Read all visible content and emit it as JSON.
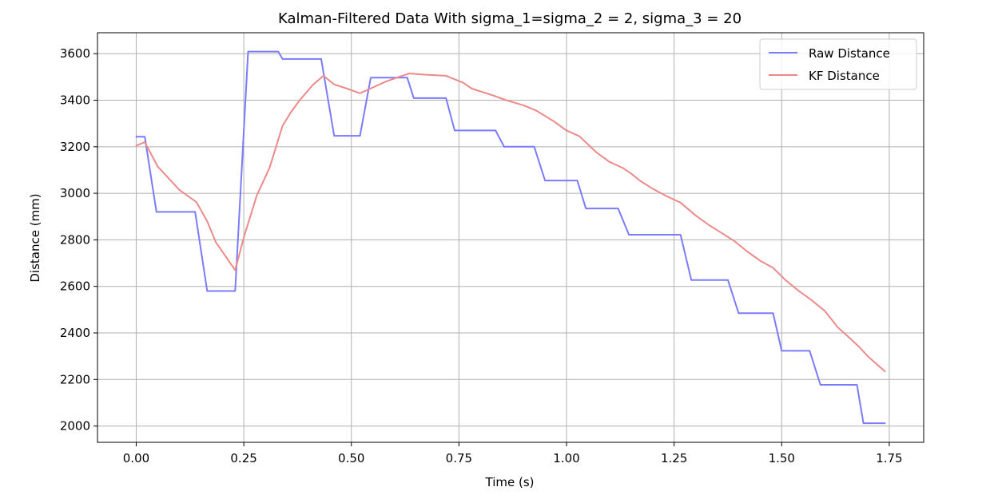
{
  "chart_data": {
    "type": "line",
    "title": "Kalman-Filtered Data With sigma_1=sigma_2 = 2, sigma_3 = 20",
    "xlabel": "Time (s)",
    "ylabel": "Distance (mm)",
    "xlim": [
      -0.09,
      1.83
    ],
    "ylim": [
      1930,
      3690
    ],
    "xticks": [
      0.0,
      0.25,
      0.5,
      0.75,
      1.0,
      1.25,
      1.5,
      1.75
    ],
    "xtick_labels": [
      "0.00",
      "0.25",
      "0.50",
      "0.75",
      "1.00",
      "1.25",
      "1.50",
      "1.75"
    ],
    "yticks": [
      2000,
      2200,
      2400,
      2600,
      2800,
      3000,
      3200,
      3400,
      3600
    ],
    "ytick_labels": [
      "2000",
      "2200",
      "2400",
      "2600",
      "2800",
      "3000",
      "3200",
      "3400",
      "3600"
    ],
    "grid": true,
    "legend_position": "top-right",
    "series": [
      {
        "name": "Raw Distance",
        "color": "#7b7bff",
        "points": [
          [
            0.0,
            3243
          ],
          [
            0.02,
            3243
          ],
          [
            0.047,
            2920
          ],
          [
            0.137,
            2920
          ],
          [
            0.165,
            2580
          ],
          [
            0.23,
            2580
          ],
          [
            0.26,
            3609
          ],
          [
            0.33,
            3609
          ],
          [
            0.34,
            3577
          ],
          [
            0.43,
            3577
          ],
          [
            0.46,
            3247
          ],
          [
            0.52,
            3247
          ],
          [
            0.545,
            3497
          ],
          [
            0.63,
            3497
          ],
          [
            0.645,
            3409
          ],
          [
            0.72,
            3409
          ],
          [
            0.74,
            3270
          ],
          [
            0.835,
            3270
          ],
          [
            0.855,
            3200
          ],
          [
            0.925,
            3200
          ],
          [
            0.95,
            3055
          ],
          [
            1.025,
            3055
          ],
          [
            1.045,
            2935
          ],
          [
            1.12,
            2935
          ],
          [
            1.145,
            2822
          ],
          [
            1.265,
            2822
          ],
          [
            1.29,
            2627
          ],
          [
            1.375,
            2627
          ],
          [
            1.4,
            2485
          ],
          [
            1.48,
            2485
          ],
          [
            1.5,
            2323
          ],
          [
            1.565,
            2323
          ],
          [
            1.59,
            2177
          ],
          [
            1.675,
            2177
          ],
          [
            1.69,
            2012
          ],
          [
            1.74,
            2012
          ]
        ]
      },
      {
        "name": "KF Distance",
        "color": "#ec8a8a",
        "points": [
          [
            0.0,
            3205
          ],
          [
            0.02,
            3220
          ],
          [
            0.05,
            3115
          ],
          [
            0.08,
            3055
          ],
          [
            0.1,
            3015
          ],
          [
            0.14,
            2962
          ],
          [
            0.165,
            2880
          ],
          [
            0.185,
            2790
          ],
          [
            0.23,
            2670
          ],
          [
            0.25,
            2810
          ],
          [
            0.28,
            2990
          ],
          [
            0.31,
            3110
          ],
          [
            0.34,
            3290
          ],
          [
            0.36,
            3350
          ],
          [
            0.38,
            3400
          ],
          [
            0.41,
            3465
          ],
          [
            0.435,
            3505
          ],
          [
            0.46,
            3468
          ],
          [
            0.49,
            3450
          ],
          [
            0.52,
            3430
          ],
          [
            0.55,
            3455
          ],
          [
            0.58,
            3480
          ],
          [
            0.61,
            3500
          ],
          [
            0.635,
            3515
          ],
          [
            0.67,
            3510
          ],
          [
            0.72,
            3505
          ],
          [
            0.76,
            3475
          ],
          [
            0.78,
            3450
          ],
          [
            0.83,
            3420
          ],
          [
            0.86,
            3400
          ],
          [
            0.9,
            3378
          ],
          [
            0.93,
            3355
          ],
          [
            0.97,
            3310
          ],
          [
            1.0,
            3270
          ],
          [
            1.03,
            3245
          ],
          [
            1.05,
            3210
          ],
          [
            1.07,
            3175
          ],
          [
            1.1,
            3135
          ],
          [
            1.13,
            3110
          ],
          [
            1.15,
            3085
          ],
          [
            1.17,
            3055
          ],
          [
            1.2,
            3020
          ],
          [
            1.23,
            2990
          ],
          [
            1.265,
            2960
          ],
          [
            1.3,
            2905
          ],
          [
            1.33,
            2865
          ],
          [
            1.36,
            2830
          ],
          [
            1.39,
            2795
          ],
          [
            1.42,
            2750
          ],
          [
            1.45,
            2710
          ],
          [
            1.48,
            2680
          ],
          [
            1.51,
            2625
          ],
          [
            1.54,
            2580
          ],
          [
            1.57,
            2540
          ],
          [
            1.6,
            2495
          ],
          [
            1.63,
            2425
          ],
          [
            1.66,
            2375
          ],
          [
            1.68,
            2340
          ],
          [
            1.7,
            2300
          ],
          [
            1.74,
            2235
          ]
        ]
      }
    ]
  }
}
